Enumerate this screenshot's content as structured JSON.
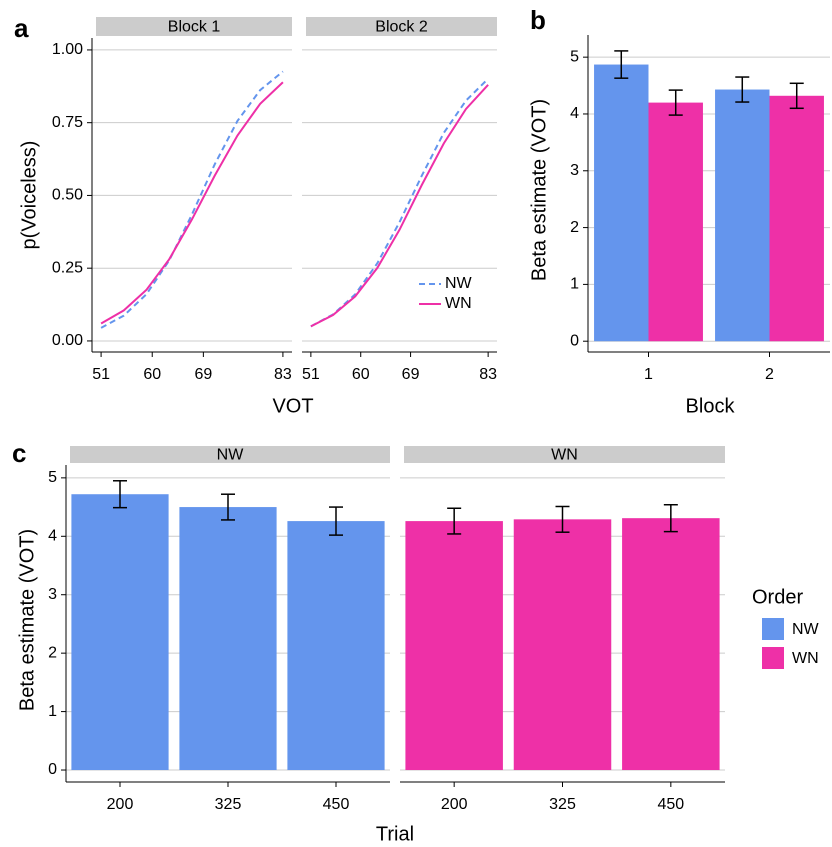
{
  "chart_data": [
    {
      "type": "line",
      "panel": "a",
      "facet": "Block 1",
      "xlabel": "VOT",
      "ylabel": "p(Voiceless)",
      "x": [
        51,
        55,
        59,
        63,
        67,
        71,
        75,
        79,
        83
      ],
      "xlim": [
        49.4,
        84.6
      ],
      "xticks": [
        51,
        60,
        69,
        83
      ],
      "ylim": [
        -0.038,
        1.041
      ],
      "yticks": [
        {
          "value": 0,
          "label": "0.00"
        },
        {
          "value": 0.25,
          "label": "0.25"
        },
        {
          "value": 0.5,
          "label": "0.50"
        },
        {
          "value": 0.75,
          "label": "0.75"
        },
        {
          "value": 1,
          "label": "1.00"
        }
      ],
      "grid": true,
      "series": [
        {
          "color": "#6495ED",
          "dash": true,
          "values": [
            0.045,
            0.087,
            0.161,
            0.277,
            0.435,
            0.607,
            0.756,
            0.862,
            0.926
          ]
        },
        {
          "color": "#EE30A7",
          "dash": false,
          "values": [
            0.06,
            0.105,
            0.176,
            0.281,
            0.418,
            0.568,
            0.706,
            0.815,
            0.889
          ]
        }
      ]
    },
    {
      "type": "line",
      "facet": "Block 2",
      "x": [
        51,
        55,
        59,
        63,
        67,
        71,
        75,
        79,
        83
      ],
      "xlim": [
        49.4,
        84.6
      ],
      "xticks": [
        51,
        60,
        69,
        83
      ],
      "ylim": [
        -0.038,
        1.041
      ],
      "yticks": [
        0,
        0.25,
        0.5,
        0.75,
        1
      ],
      "y_tick_labels": false,
      "grid": true,
      "legend": "bottom-right",
      "series": [
        {
          "name": "NW",
          "color": "#6495ED",
          "dash": true,
          "values": [
            0.05,
            0.091,
            0.16,
            0.267,
            0.408,
            0.567,
            0.715,
            0.826,
            0.901
          ]
        },
        {
          "name": "WN",
          "color": "#EE30A7",
          "dash": false,
          "values": [
            0.05,
            0.089,
            0.153,
            0.251,
            0.382,
            0.535,
            0.679,
            0.797,
            0.88
          ]
        }
      ]
    },
    {
      "type": "bar",
      "panel": "b",
      "xlabel": "Block",
      "ylabel": "Beta estimate (VOT)",
      "categories": [
        "1",
        "2"
      ],
      "ylim": [
        -0.19,
        5.39
      ],
      "yticks": [
        0,
        1,
        2,
        3,
        4,
        5
      ],
      "grid": true,
      "legend": "right",
      "legend_title": "Order",
      "series": [
        {
          "name": "NW",
          "color": "#6495ED",
          "values": [
            4.87,
            4.43
          ],
          "errors": [
            0.24,
            0.22
          ]
        },
        {
          "name": "WN",
          "color": "#EE30A7",
          "values": [
            4.2,
            4.32
          ],
          "errors": [
            0.22,
            0.22
          ]
        }
      ]
    },
    {
      "type": "bar",
      "panel": "c",
      "facet": "NW",
      "xlabel": "Trial",
      "ylabel": "Beta estimate (VOT)",
      "categories": [
        "200",
        "325",
        "450"
      ],
      "ylim": [
        -0.205,
        5.22
      ],
      "yticks": [
        0,
        1,
        2,
        3,
        4,
        5
      ],
      "grid": true,
      "color": "#6495ED",
      "values": [
        4.72,
        4.5,
        4.26
      ],
      "errors": [
        0.23,
        0.22,
        0.24
      ]
    },
    {
      "type": "bar",
      "facet": "WN",
      "categories": [
        "200",
        "325",
        "450"
      ],
      "ylim": [
        -0.205,
        5.22
      ],
      "yticks": [
        0,
        1,
        2,
        3,
        4,
        5
      ],
      "y_tick_labels": false,
      "grid": true,
      "color": "#EE30A7",
      "values": [
        4.26,
        4.29,
        4.31
      ],
      "errors": [
        0.22,
        0.22,
        0.23
      ]
    }
  ]
}
